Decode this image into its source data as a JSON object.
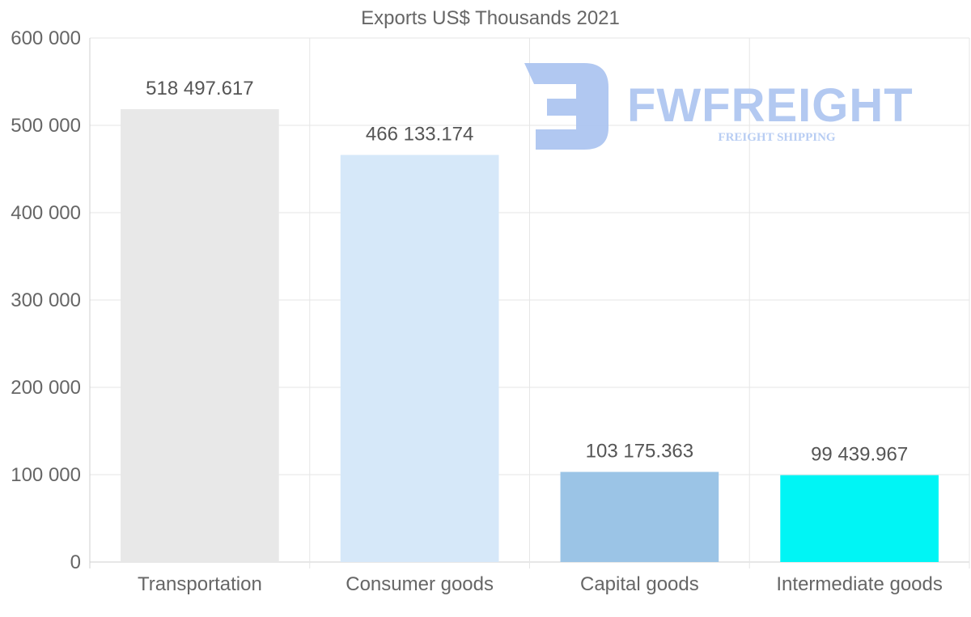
{
  "chart_data": {
    "type": "bar",
    "title": "Exports US$ Thousands 2021",
    "categories": [
      "Transportation",
      "Consumer goods",
      "Capital goods",
      "Intermediate goods"
    ],
    "values": [
      518497.617,
      466133.174,
      103175.363,
      99439.967
    ],
    "data_labels": [
      "518 497.617",
      "466 133.174",
      "103 175.363",
      "99 439.967"
    ],
    "colors": [
      "#e8e8e8",
      "#d6e8f9",
      "#9bc4e6",
      "#00f5f5"
    ],
    "ylim": [
      0,
      600000
    ],
    "yticks": [
      0,
      100000,
      200000,
      300000,
      400000,
      500000,
      600000
    ],
    "ytick_labels": [
      "0",
      "100 000",
      "200 000",
      "300 000",
      "400 000",
      "500 000",
      "600 000"
    ],
    "xlabel": "",
    "ylabel": "",
    "grid": true
  },
  "watermark": {
    "brand": "FWFREIGHT",
    "tagline": "FREIGHT SHIPPING"
  }
}
